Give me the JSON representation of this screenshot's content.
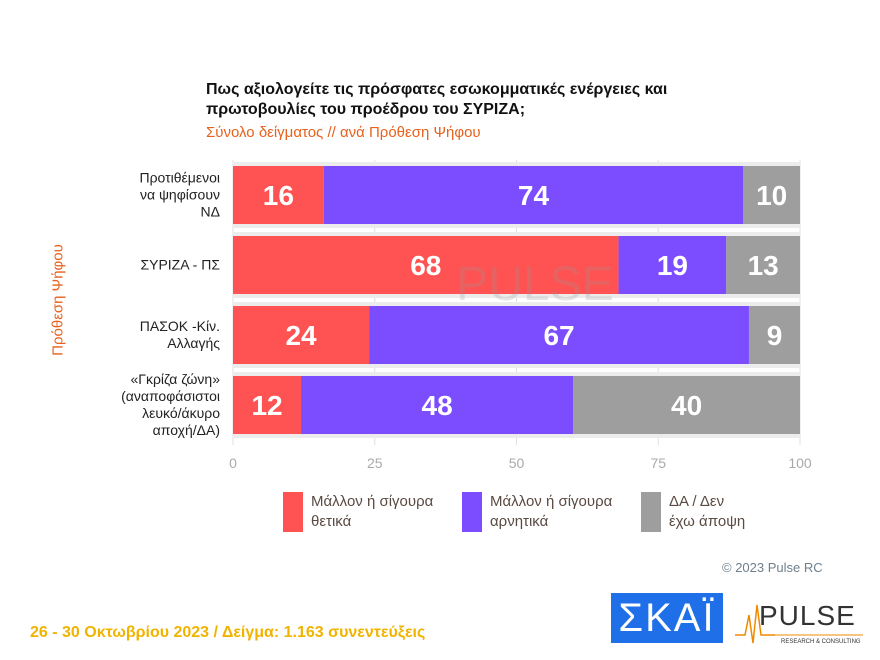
{
  "chart_data": {
    "type": "bar",
    "stacked": true,
    "orientation": "horizontal",
    "title": "Πως αξιολογείτε τις πρόσφατες εσωκομματικές ενέργειες και πρωτοβουλίες του προέδρου του ΣΥΡΙΖΑ;",
    "subtitle": "Σύνολο δείγματος // ανά Πρόθεση Ψήφου",
    "ylabel": "Πρόθεση Ψήφου",
    "categories": [
      [
        "Προτιθέμενοι",
        "να ψηφίσουν",
        "ΝΔ"
      ],
      [
        "ΣΥΡΙΖΑ - ΠΣ"
      ],
      [
        "ΠΑΣΟΚ -Κίν.",
        "Αλλαγής"
      ],
      [
        "«Γκρίζα ζώνη»",
        "(αναποφάσιστοι",
        "λευκό/άκυρο",
        "αποχή/ΔΑ)"
      ]
    ],
    "series": [
      {
        "name": "Μάλλον ή σίγουρα θετικά",
        "color": "#ff5252",
        "values": [
          16,
          68,
          24,
          12
        ]
      },
      {
        "name": "Μάλλον ή σίγουρα αρνητικά",
        "color": "#7c4dff",
        "values": [
          74,
          19,
          67,
          48
        ]
      },
      {
        "name": "ΔΑ / Δεν έχω άποψη",
        "color": "#9e9e9e",
        "values": [
          10,
          13,
          9,
          40
        ]
      }
    ],
    "legend_lines": [
      [
        "Μάλλον ή σίγουρα",
        "θετικά"
      ],
      [
        "Μάλλον ή σίγουρα",
        "αρνητικά"
      ],
      [
        "ΔΑ / Δεν",
        "έχω άποψη"
      ]
    ],
    "xlim": [
      0,
      100
    ],
    "xticks": [
      0,
      25,
      50,
      75,
      100
    ],
    "grid": true,
    "legend": "bottom"
  },
  "watermark": "PULSE RESEARCH & CONSULTING",
  "copyright": "© 2023 Pulse RC",
  "footer": "26 - 30  Οκτωβρίου  2023  /  Δείγμα:  1.163 συνεντεύξεις",
  "logos": {
    "skai": "ΣΚΑΪ",
    "pulse": "PULSE",
    "pulse_sub": "RESEARCH & CONSULTING"
  }
}
